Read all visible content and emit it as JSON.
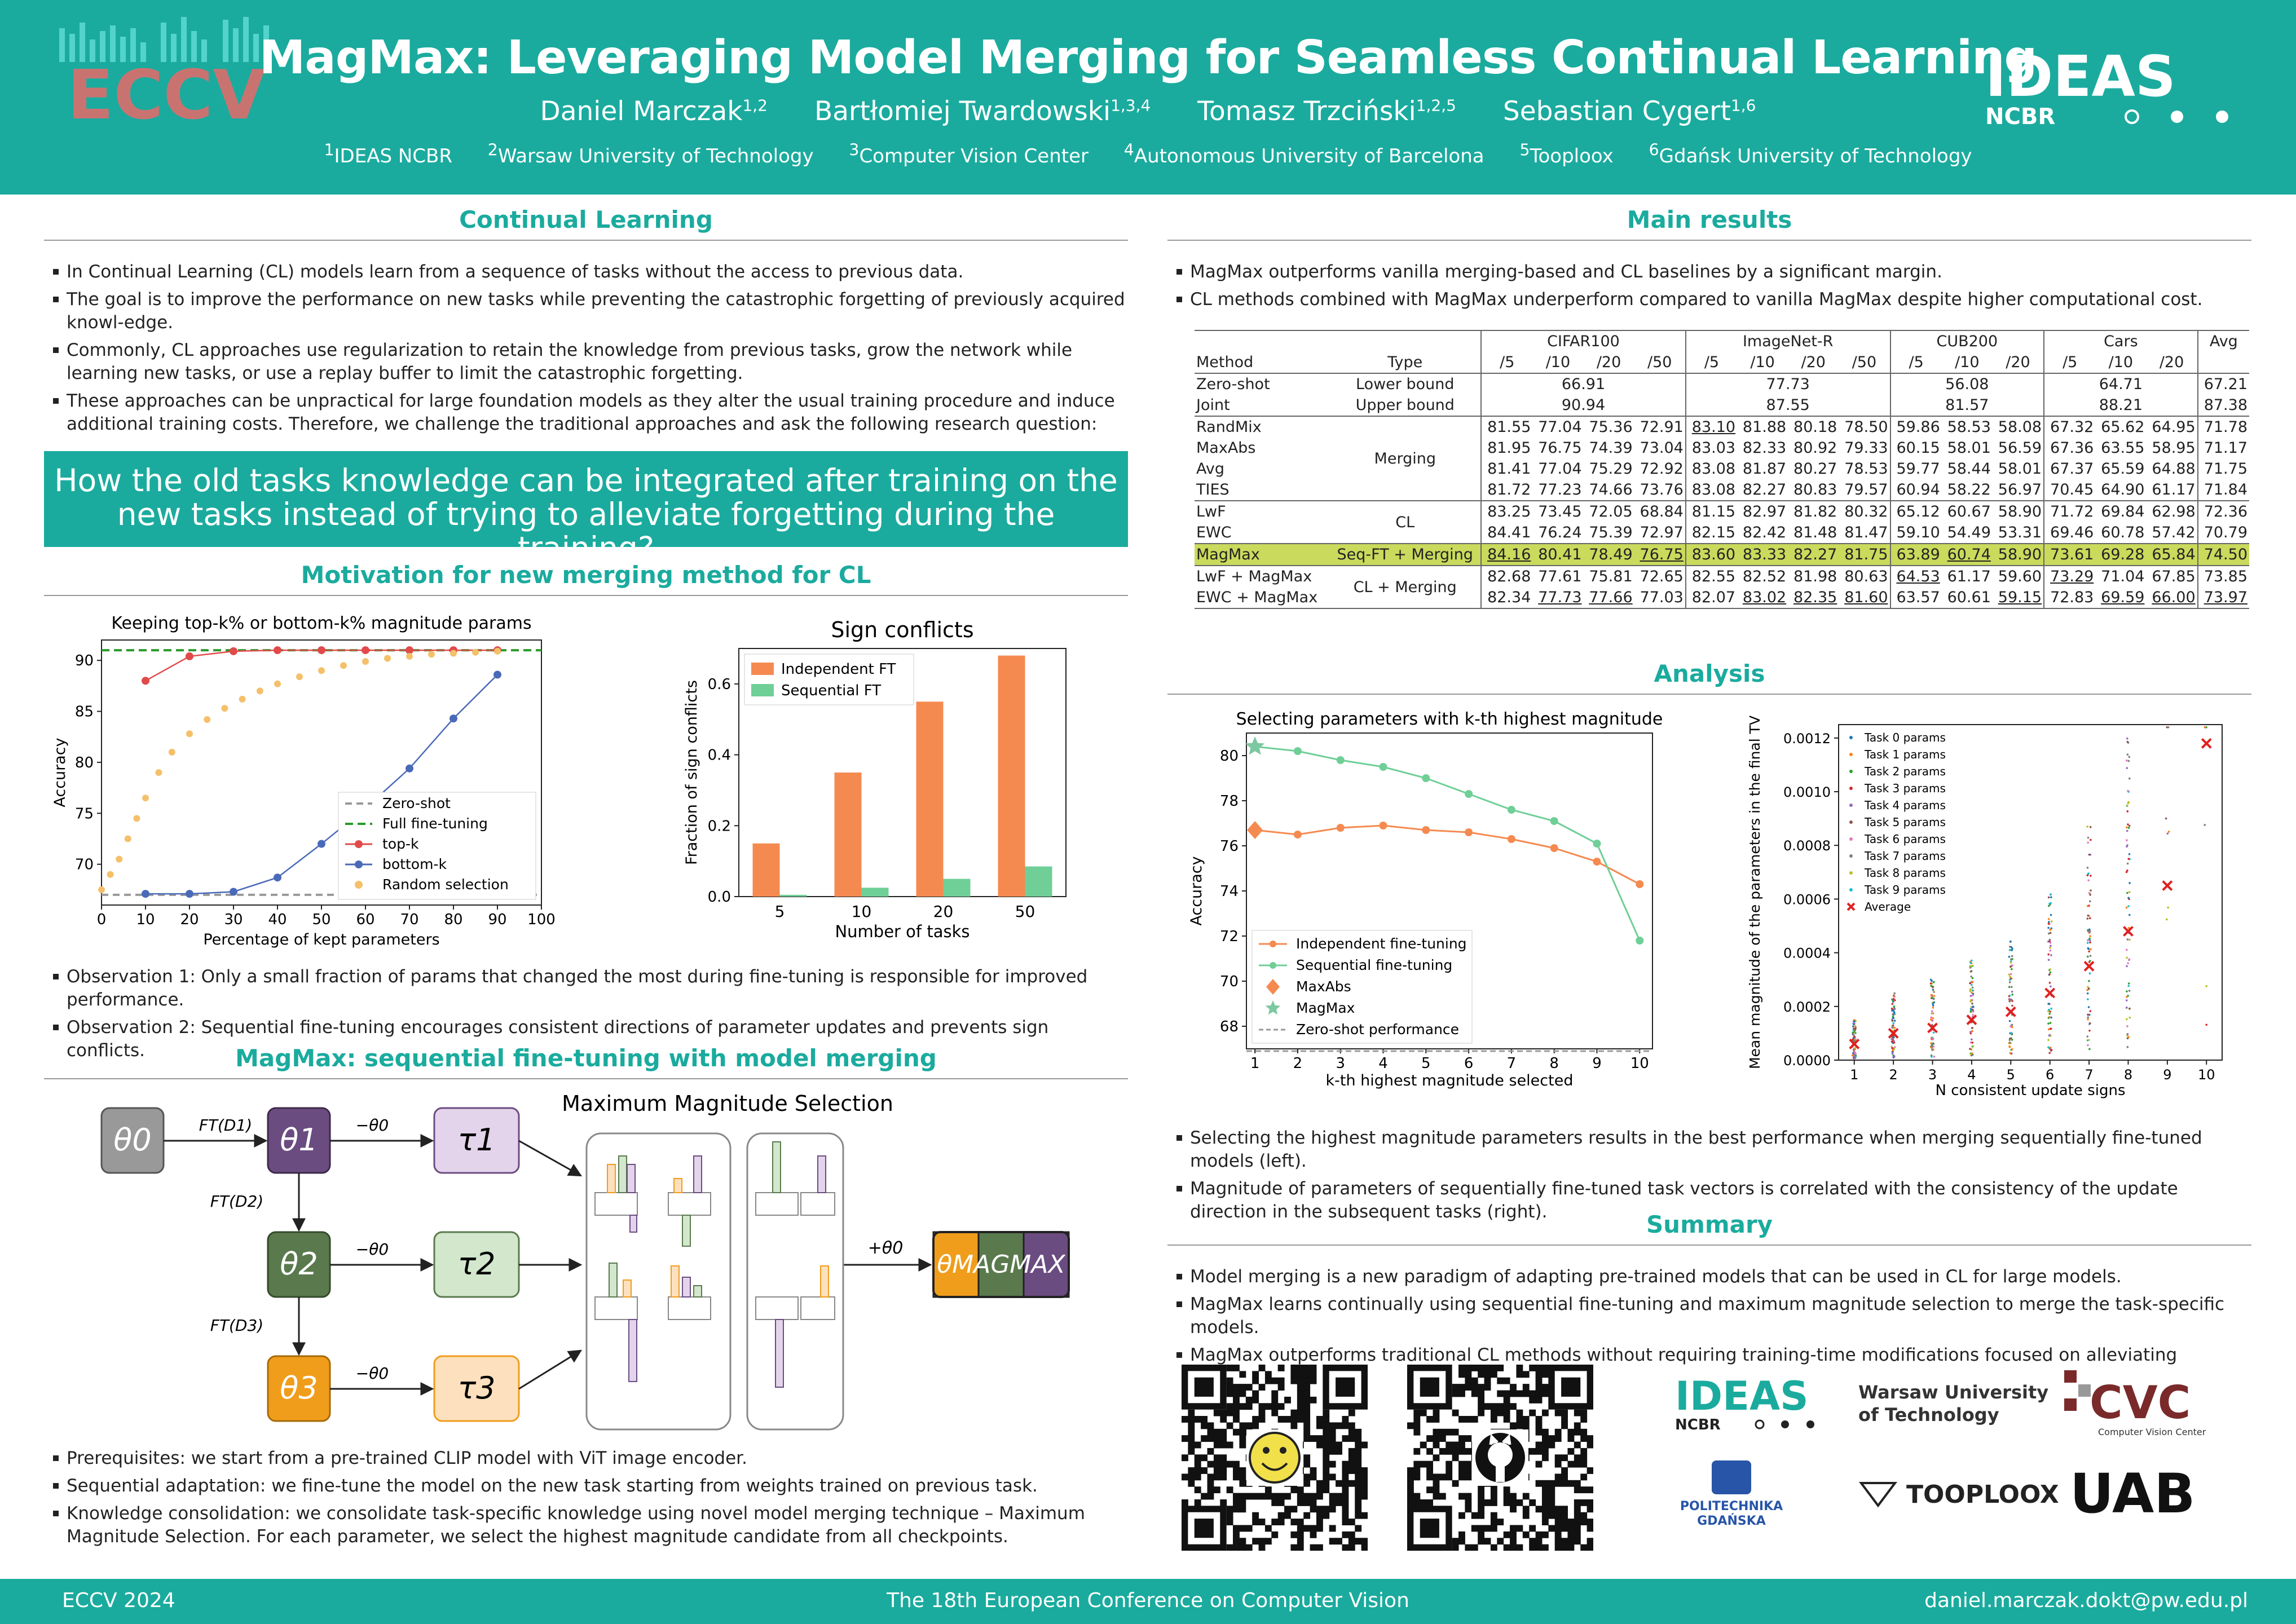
{
  "header": {
    "title": "MagMax: Leveraging Model Merging for Seamless Continual Learning",
    "authors": [
      {
        "name": "Daniel Marczak",
        "sup": "1,2"
      },
      {
        "name": "Bartłomiej Twardowski",
        "sup": "1,3,4"
      },
      {
        "name": "Tomasz Trzciński",
        "sup": "1,2,5"
      },
      {
        "name": "Sebastian Cygert",
        "sup": "1,6"
      }
    ],
    "affiliations": [
      {
        "sup": "1",
        "name": "IDEAS NCBR"
      },
      {
        "sup": "2",
        "name": "Warsaw University of Technology"
      },
      {
        "sup": "3",
        "name": "Computer Vision Center"
      },
      {
        "sup": "4",
        "name": "Autonomous University of Barcelona"
      },
      {
        "sup": "5",
        "name": "Tooploox"
      },
      {
        "sup": "6",
        "name": "Gdańsk University of Technology"
      }
    ],
    "logo_left": "ECCV",
    "logo_right": "IDEAS",
    "logo_right_sub": "NCBR"
  },
  "cl": {
    "title": "Continual Learning",
    "bullets": [
      "In Continual Learning (CL) models learn from a sequence of tasks without the access to previous data.",
      "The goal is to improve the performance on new tasks while preventing the catastrophic forgetting of previously acquired knowl-edge.",
      "Commonly, CL approaches use regularization to retain the knowledge from previous tasks, grow the network while learning new tasks, or use a replay buffer to limit the catastrophic forgetting.",
      "These approaches can be unpractical for large foundation models as they alter the usual training procedure and induce additional training costs. Therefore, we challenge the traditional approaches and ask the following research question:"
    ],
    "question_1": "How the old tasks knowledge can be integrated after training on the",
    "question_2": "new tasks instead of trying to alleviate forgetting during the training?"
  },
  "motivation": {
    "title": "Motivation for new merging method for CL",
    "observations": [
      "Observation 1: Only a small fraction of params that changed the most during fine-tuning is responsible for improved performance.",
      "Observation 2: Sequential fine-tuning encourages consistent directions of parameter updates and prevents sign conflicts."
    ]
  },
  "method": {
    "title": "MagMax: sequential fine-tuning with model merging",
    "mms_title": "Maximum Magnitude Selection",
    "bullets": [
      "Prerequisites: we start from a pre-trained CLIP model with ViT image encoder.",
      "Sequential adaptation: we fine-tune the model on the new task starting from weights trained on previous task.",
      "Knowledge consolidation: we consolidate task-specific knowledge using novel model merging technique – Maximum Magnitude Selection. For each parameter, we select the highest magnitude candidate from all checkpoints."
    ],
    "labels": {
      "t0": "θ0",
      "t1": "θ1",
      "t2": "θ2",
      "t3": "θ3",
      "tau1": "τ1",
      "tau2": "τ2",
      "tau3": "τ3",
      "ft1": "FT(D1)",
      "ft2": "FT(D2)",
      "ft3": "FT(D3)",
      "minus": "−θ0",
      "plus": "+θ0",
      "out": "θMAGMAX"
    }
  },
  "results": {
    "title": "Main results",
    "bullets": [
      "MagMax outperforms vanilla merging-based and CL baselines by a significant margin.",
      "CL methods combined with MagMax underperform compared to vanilla MagMax despite higher computational cost."
    ],
    "groups": [
      "CIFAR100",
      "ImageNet-R",
      "CUB200",
      "Cars",
      "Avg"
    ],
    "sub": [
      "/5",
      "/10",
      "/20",
      "/50",
      "/5",
      "/10",
      "/20",
      "/50",
      "/5",
      "/10",
      "/20",
      "/5",
      "/10",
      "/20"
    ],
    "col_method": "Method",
    "col_type": "Type",
    "zs": {
      "method": "Zero-shot",
      "type": "Lower bound",
      "vals": [
        "66.91",
        "77.73",
        "56.08",
        "64.71",
        "67.21"
      ]
    },
    "joint": {
      "method": "Joint",
      "type": "Upper bound",
      "vals": [
        "90.94",
        "87.55",
        "81.57",
        "88.21",
        "87.38"
      ]
    },
    "merging_type": "Merging",
    "cl_type": "CL",
    "magmax_type": "Seq-FT + Merging",
    "clm_type": "CL + Merging",
    "rows": [
      {
        "m": "RandMix",
        "v": [
          "81.55",
          "77.04",
          "75.36",
          "72.91",
          "83.10",
          "81.88",
          "80.18",
          "78.50",
          "59.86",
          "58.53",
          "58.08",
          "67.32",
          "65.62",
          "64.95",
          "71.78"
        ]
      },
      {
        "m": "MaxAbs",
        "v": [
          "81.95",
          "76.75",
          "74.39",
          "73.04",
          "83.03",
          "82.33",
          "80.92",
          "79.33",
          "60.15",
          "58.01",
          "56.59",
          "67.36",
          "63.55",
          "58.95",
          "71.17"
        ]
      },
      {
        "m": "Avg",
        "v": [
          "81.41",
          "77.04",
          "75.29",
          "72.92",
          "83.08",
          "81.87",
          "80.27",
          "78.53",
          "59.77",
          "58.44",
          "58.01",
          "67.37",
          "65.59",
          "64.88",
          "71.75"
        ]
      },
      {
        "m": "TIES",
        "v": [
          "81.72",
          "77.23",
          "74.66",
          "73.76",
          "83.08",
          "82.27",
          "80.83",
          "79.57",
          "60.94",
          "58.22",
          "56.97",
          "70.45",
          "64.90",
          "61.17",
          "71.84"
        ]
      },
      {
        "m": "LwF",
        "v": [
          "83.25",
          "73.45",
          "72.05",
          "68.84",
          "81.15",
          "82.97",
          "81.82",
          "80.32",
          "65.12",
          "60.67",
          "58.90",
          "71.72",
          "69.84",
          "62.98",
          "72.36"
        ]
      },
      {
        "m": "EWC",
        "v": [
          "84.41",
          "76.24",
          "75.39",
          "72.97",
          "82.15",
          "82.42",
          "81.48",
          "81.47",
          "59.10",
          "54.49",
          "53.31",
          "69.46",
          "60.78",
          "57.42",
          "70.79"
        ]
      },
      {
        "m": "MagMax",
        "v": [
          "84.16",
          "80.41",
          "78.49",
          "76.75",
          "83.60",
          "83.33",
          "82.27",
          "81.75",
          "63.89",
          "60.74",
          "58.90",
          "73.61",
          "69.28",
          "65.84",
          "74.50"
        ]
      },
      {
        "m": "LwF + MagMax",
        "v": [
          "82.68",
          "77.61",
          "75.81",
          "72.65",
          "82.55",
          "82.52",
          "81.98",
          "80.63",
          "64.53",
          "61.17",
          "59.60",
          "73.29",
          "71.04",
          "67.85",
          "73.85"
        ]
      },
      {
        "m": "EWC + MagMax",
        "v": [
          "82.34",
          "77.73",
          "77.66",
          "77.03",
          "82.07",
          "83.02",
          "82.35",
          "81.60",
          "63.57",
          "60.61",
          "59.15",
          "72.83",
          "69.59",
          "66.00",
          "73.97"
        ]
      }
    ]
  },
  "analysis": {
    "title": "Analysis",
    "bullets": [
      "Selecting the highest magnitude parameters results in the best performance when merging sequentially fine-tuned models (left).",
      "Magnitude of parameters of sequentially fine-tuned task vectors is correlated with the consistency of the update direction in the subsequent tasks (right)."
    ]
  },
  "summary": {
    "title": "Summary",
    "bullets": [
      "Model merging is a new paradigm of adapting pre-trained models that can be used in CL for large models.",
      "MagMax learns continually using sequential fine-tuning and maximum magnitude selection to merge the task-specific models.",
      "MagMax outperforms traditional CL methods without requiring training-time modifications focused on alleviating forgetting."
    ],
    "logos": {
      "ideas": "IDEAS",
      "ncbr": "NCBR",
      "wut_1": "Warsaw University",
      "wut_2": "of Technology",
      "cvc": "CVC",
      "cvc_sub": "Computer Vision Center",
      "pg_1": "POLITECHNIKA",
      "pg_2": "GDAŃSKA",
      "tooploox": "TOOPLOOX",
      "uab": "UAB"
    }
  },
  "footer": {
    "left": "ECCV 2024",
    "center": "The 18th European Conference on Computer Vision",
    "right": "daniel.marczak.dokt@pw.edu.pl"
  },
  "chart_data": [
    {
      "type": "line",
      "title": "Keeping top-k% or bottom-k% magnitude params",
      "xlabel": "Percentage of kept parameters",
      "ylabel": "Accuracy",
      "xlim": [
        0,
        100
      ],
      "ylim": [
        66,
        92
      ],
      "xticks": [
        0,
        10,
        20,
        30,
        40,
        50,
        60,
        70,
        80,
        90,
        100
      ],
      "yticks": [
        70,
        75,
        80,
        85,
        90
      ],
      "series": [
        {
          "name": "Zero-shot",
          "x": [
            0,
            100
          ],
          "y": [
            67.0,
            67.0
          ]
        },
        {
          "name": "Full fine-tuning",
          "x": [
            0,
            100
          ],
          "y": [
            91.0,
            91.0
          ]
        },
        {
          "name": "top-k",
          "x": [
            10,
            20,
            30,
            40,
            50,
            60,
            70,
            80,
            90
          ],
          "y": [
            88.0,
            90.4,
            90.9,
            91.0,
            91.0,
            91.0,
            91.0,
            91.0,
            91.0
          ]
        },
        {
          "name": "bottom-k",
          "x": [
            10,
            20,
            30,
            40,
            50,
            60,
            70,
            80,
            90
          ],
          "y": [
            67.1,
            67.1,
            67.3,
            68.7,
            72.0,
            75.5,
            79.4,
            84.3,
            88.6
          ]
        },
        {
          "name": "Random selection",
          "x": [
            0,
            2,
            4,
            6,
            8,
            10,
            13,
            16,
            20,
            24,
            28,
            32,
            36,
            40,
            45,
            50,
            55,
            60,
            65,
            70,
            75,
            80,
            85,
            90
          ],
          "y": [
            67.5,
            69.0,
            70.5,
            72.5,
            74.5,
            76.5,
            79.0,
            81.0,
            82.8,
            84.2,
            85.3,
            86.2,
            87.0,
            87.7,
            88.4,
            89.0,
            89.5,
            89.9,
            90.2,
            90.4,
            90.6,
            90.7,
            90.8,
            90.9
          ]
        }
      ]
    },
    {
      "type": "bar",
      "title": "Sign conflicts",
      "xlabel": "Number of tasks",
      "ylabel": "Fraction of sign conflicts",
      "categories": [
        "5",
        "10",
        "20",
        "50"
      ],
      "ylim": [
        0,
        0.7
      ],
      "yticks": [
        "0.0",
        "0.2",
        "0.4",
        "0.6"
      ],
      "series": [
        {
          "name": "Independent FT",
          "values": [
            0.15,
            0.35,
            0.55,
            0.68
          ]
        },
        {
          "name": "Sequential FT",
          "values": [
            0.005,
            0.025,
            0.05,
            0.085
          ]
        }
      ]
    },
    {
      "type": "line",
      "title": "Selecting parameters with k-th highest magnitude",
      "xlabel": "k-th highest magnitude selected",
      "ylabel": "Accuracy",
      "xlim": [
        0.8,
        10.3
      ],
      "ylim": [
        67,
        81
      ],
      "xticks": [
        1,
        2,
        3,
        4,
        5,
        6,
        7,
        8,
        9,
        10
      ],
      "yticks": [
        68,
        70,
        72,
        74,
        76,
        78,
        80
      ],
      "series": [
        {
          "name": "Independent fine-tuning",
          "x": [
            1,
            2,
            3,
            4,
            5,
            6,
            7,
            8,
            9,
            10
          ],
          "y": [
            76.7,
            76.5,
            76.8,
            76.9,
            76.7,
            76.6,
            76.3,
            75.9,
            75.3,
            74.3
          ]
        },
        {
          "name": "Sequential fine-tuning",
          "x": [
            1,
            2,
            3,
            4,
            5,
            6,
            7,
            8,
            9,
            10
          ],
          "y": [
            80.4,
            80.2,
            79.8,
            79.5,
            79.0,
            78.3,
            77.6,
            77.1,
            76.1,
            71.8
          ]
        },
        {
          "name": "MaxAbs",
          "x": [
            1
          ],
          "y": [
            76.7
          ]
        },
        {
          "name": "MagMax",
          "x": [
            1
          ],
          "y": [
            80.4
          ]
        },
        {
          "name": "Zero-shot performance",
          "x": [
            0.8,
            10.3
          ],
          "y": [
            66.9,
            66.9
          ]
        }
      ]
    },
    {
      "type": "scatter",
      "xlabel": "N consistent update signs",
      "ylabel": "Mean magnitude of the parameters in the final TV",
      "xlim": [
        0.6,
        10.4
      ],
      "ylim": [
        0,
        0.00125
      ],
      "xticks": [
        1,
        2,
        3,
        4,
        5,
        6,
        7,
        8,
        9,
        10
      ],
      "yticks": [
        "0.0000",
        "0.0002",
        "0.0004",
        "0.0006",
        "0.0008",
        "0.0010",
        "0.0012"
      ],
      "legend": [
        "Task 0 params",
        "Task 1 params",
        "Task 2 params",
        "Task 3 params",
        "Task 4 params",
        "Task 5 params",
        "Task 6 params",
        "Task 7 params",
        "Task 8 params",
        "Task 9 params",
        "Average"
      ],
      "average": {
        "x": [
          1,
          2,
          3,
          4,
          5,
          6,
          7,
          8,
          9,
          10
        ],
        "y": [
          6e-05,
          0.0001,
          0.00012,
          0.00015,
          0.00018,
          0.00025,
          0.00035,
          0.00048,
          0.00065,
          0.00118
        ]
      }
    }
  ]
}
